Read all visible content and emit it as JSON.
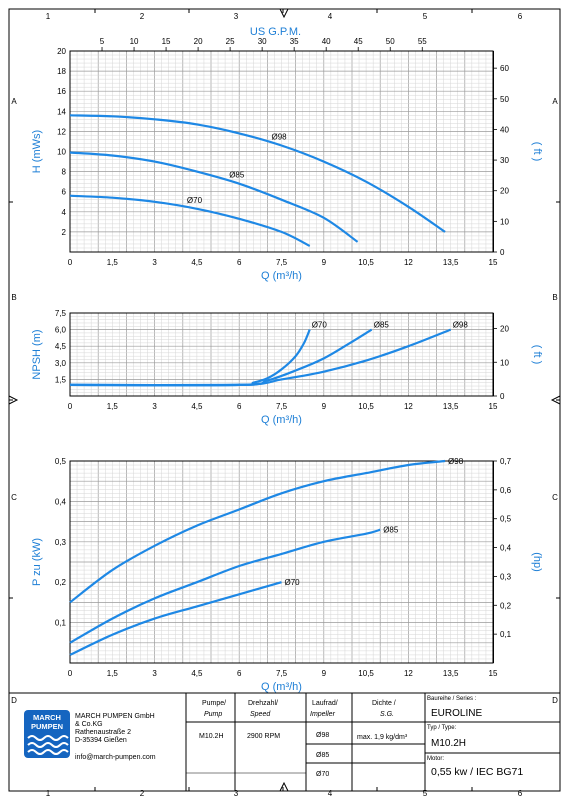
{
  "frame": {
    "columns": [
      "1",
      "2",
      "3",
      "4",
      "5",
      "6"
    ],
    "rows": [
      "A",
      "B",
      "C",
      "D"
    ]
  },
  "chart_data": [
    {
      "type": "line",
      "ylabel": "H (mWs)",
      "y2label": "( ft )",
      "xlabel": "Q (m³/h)",
      "x2label": "US G.P.M.",
      "xlim": [
        0,
        15
      ],
      "ylim": [
        0,
        20
      ],
      "y2lim": [
        0,
        65.6
      ],
      "x_ticks": [
        "0",
        "1,5",
        "3",
        "4,5",
        "6",
        "7,5",
        "9",
        "10,5",
        "12",
        "13,5",
        "15"
      ],
      "y_ticks": [
        "2",
        "4",
        "6",
        "8",
        "10",
        "12",
        "14",
        "16",
        "18",
        "20"
      ],
      "y2_ticks": [
        "0",
        "10",
        "20",
        "30",
        "40",
        "50",
        "60"
      ],
      "x2_ticks": [
        "5",
        "10",
        "15",
        "20",
        "25",
        "30",
        "35",
        "40",
        "45",
        "50",
        "55"
      ],
      "series": [
        {
          "name": "Ø98",
          "x": [
            0,
            1.5,
            3,
            4.5,
            6,
            7.5,
            9,
            10.5,
            12,
            13.3
          ],
          "y": [
            13.6,
            13.5,
            13.2,
            12.7,
            11.8,
            10.6,
            9.0,
            7.0,
            4.5,
            2.0
          ]
        },
        {
          "name": "Ø85",
          "x": [
            0,
            1.5,
            3,
            4.5,
            6,
            7.5,
            9,
            10.2
          ],
          "y": [
            9.9,
            9.6,
            9.0,
            8.0,
            6.8,
            5.2,
            3.4,
            1.0
          ]
        },
        {
          "name": "Ø70",
          "x": [
            0,
            1.5,
            3,
            4.5,
            6,
            7.5,
            8.5
          ],
          "y": [
            5.6,
            5.4,
            5.0,
            4.3,
            3.3,
            2.0,
            0.6
          ]
        }
      ]
    },
    {
      "type": "line",
      "ylabel": "NPSH (m)",
      "y2label": "( ft )",
      "xlabel": "Q (m³/h)",
      "xlim": [
        0,
        15
      ],
      "ylim": [
        0,
        7.5
      ],
      "y2lim": [
        0,
        24.6
      ],
      "x_ticks": [
        "0",
        "1,5",
        "3",
        "4,5",
        "6",
        "7,5",
        "9",
        "10,5",
        "12",
        "13,5",
        "15"
      ],
      "y_ticks": [
        "1,5",
        "3,0",
        "4,5",
        "6,0",
        "7,5"
      ],
      "y2_ticks": [
        "0",
        "10",
        "20"
      ],
      "series": [
        {
          "name": "Ø70",
          "x": [
            0,
            6,
            6.5,
            7,
            7.5,
            8,
            8.3,
            8.5
          ],
          "y": [
            1.0,
            1.0,
            1.2,
            1.6,
            2.4,
            3.6,
            4.8,
            6.0
          ]
        },
        {
          "name": "Ø85",
          "x": [
            0,
            6,
            7,
            8,
            9,
            10,
            10.7
          ],
          "y": [
            1.0,
            1.0,
            1.4,
            2.3,
            3.4,
            4.9,
            6.0
          ]
        },
        {
          "name": "Ø98",
          "x": [
            0,
            6,
            7.5,
            9,
            10.5,
            12,
            13.5
          ],
          "y": [
            1.0,
            1.0,
            1.5,
            2.2,
            3.2,
            4.5,
            6.0
          ]
        }
      ]
    },
    {
      "type": "line",
      "ylabel": "P zu (kW)",
      "y2label": "(hp)",
      "xlabel": "Q (m³/h)",
      "xlim": [
        0,
        15
      ],
      "ylim": [
        0,
        0.5
      ],
      "y2lim": [
        0,
        0.7
      ],
      "x_ticks": [
        "0",
        "1,5",
        "3",
        "4,5",
        "6",
        "7,5",
        "9",
        "10,5",
        "12",
        "13,5",
        "15"
      ],
      "y_ticks": [
        "0,1",
        "0,2",
        "0,3",
        "0,4",
        "0,5"
      ],
      "y2_ticks": [
        "0,1",
        "0,2",
        "0,3",
        "0,4",
        "0,5",
        "0,6",
        "0,7"
      ],
      "series": [
        {
          "name": "Ø98",
          "x": [
            0,
            1.5,
            3,
            4.5,
            6,
            7.5,
            9,
            10.5,
            12,
            13.3
          ],
          "y": [
            0.15,
            0.23,
            0.29,
            0.34,
            0.38,
            0.42,
            0.45,
            0.47,
            0.49,
            0.5
          ]
        },
        {
          "name": "Ø85",
          "x": [
            0,
            1.5,
            3,
            4.5,
            6,
            7.5,
            9,
            10.5,
            11
          ],
          "y": [
            0.05,
            0.11,
            0.16,
            0.2,
            0.24,
            0.27,
            0.3,
            0.32,
            0.33
          ]
        },
        {
          "name": "Ø70",
          "x": [
            0,
            1.5,
            3,
            4.5,
            6,
            7.5
          ],
          "y": [
            0.02,
            0.07,
            0.11,
            0.14,
            0.17,
            0.2
          ]
        }
      ]
    }
  ],
  "title_block": {
    "company_lines": [
      "MARCH PUMPEN GmbH",
      "& Co.KG",
      "Rathenaustraße 2",
      "D-35394 Gießen"
    ],
    "email": "info@march-pumpen.com",
    "logo_text": [
      "MARCH",
      "PUMPEN"
    ],
    "headers": [
      {
        "de": "Pumpe/",
        "en": "Pump"
      },
      {
        "de": "Drehzahl/",
        "en": "Speed"
      },
      {
        "de": "Laufrad/",
        "en": "Impeller"
      },
      {
        "de": "Dichte /",
        "en": "S.G."
      }
    ],
    "pump": "M10.2H",
    "speed": "2900 RPM",
    "impellers": [
      "Ø98",
      "Ø85",
      "Ø70"
    ],
    "density": "max. 1,9 kg/dm³",
    "series_label": "Baureihe / Series :",
    "series": "EUROLINE",
    "type_label": "Typ / Type:",
    "type": "M10.2H",
    "motor_label": "Motor:",
    "motor": "0,55 kw / IEC BG71"
  },
  "colors": {
    "curve": "#1e88e5",
    "axis_title": "#1e7fd6",
    "logo": "#1565c0"
  }
}
